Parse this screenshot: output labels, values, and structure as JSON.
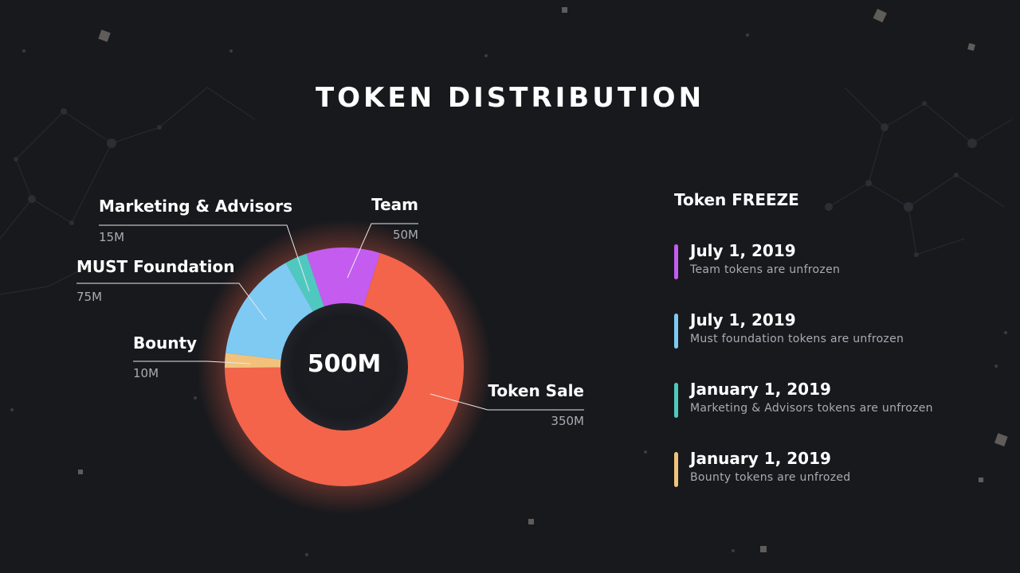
{
  "page": {
    "title": "TOKEN DISTRIBUTION"
  },
  "chart_data": {
    "type": "pie",
    "total_label": "500M",
    "slices": [
      {
        "label": "Team",
        "value": 50,
        "value_label": "50M",
        "color": "#c45cf0"
      },
      {
        "label": "Token Sale",
        "value": 350,
        "value_label": "350M",
        "color": "#f4644a"
      },
      {
        "label": "Bounty",
        "value": 10,
        "value_label": "10M",
        "color": "#f2c27c"
      },
      {
        "label": "MUST Foundation",
        "value": 75,
        "value_label": "75M",
        "color": "#7ecaf3"
      },
      {
        "label": "Marketing & Advisors",
        "value": 15,
        "value_label": "15M",
        "color": "#4fc9c0"
      }
    ]
  },
  "freeze": {
    "title": "Token FREEZE",
    "events": [
      {
        "date": "July 1, 2019",
        "desc": "Team tokens are unfrozen",
        "color": "#c45cf0"
      },
      {
        "date": "July 1, 2019",
        "desc": "Must foundation tokens are unfrozen",
        "color": "#7ecaf3"
      },
      {
        "date": "January 1, 2019",
        "desc": "Marketing & Advisors tokens are unfrozen",
        "color": "#4fc9c0"
      },
      {
        "date": "January 1, 2019",
        "desc": "Bounty tokens are unfrozed",
        "color": "#f2c27c"
      }
    ]
  }
}
